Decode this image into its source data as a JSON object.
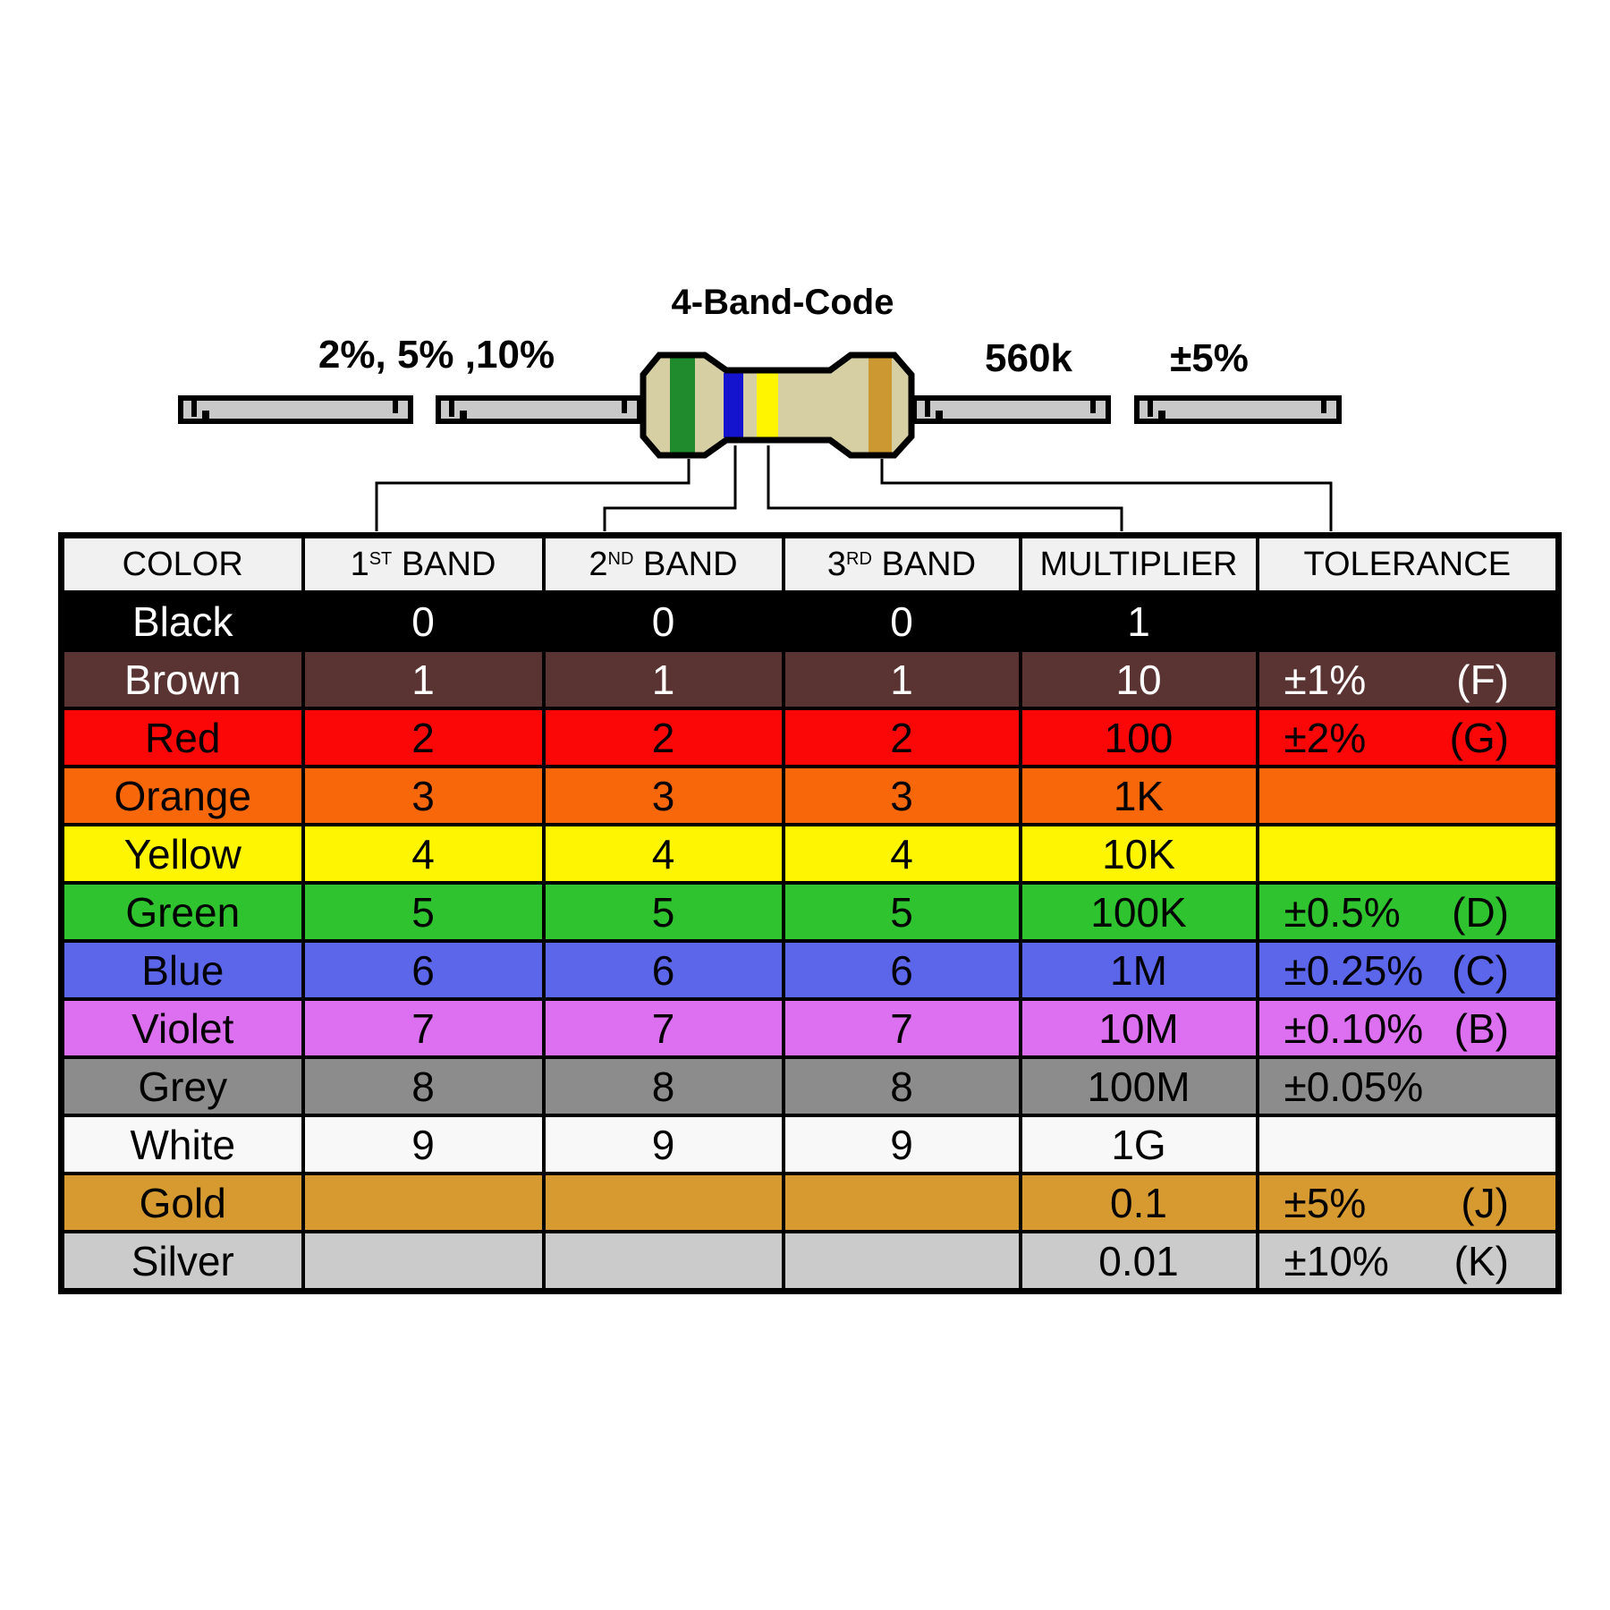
{
  "figure": {
    "title": "4-Band-Code",
    "left_label": "2%, 5% ,10%",
    "value_label": "560k",
    "tolerance_label": "±5%",
    "lead_color": "#c9c9c9",
    "resistor": {
      "body_color": "#d7cfa4",
      "bands": [
        {
          "name": "green-1st-band",
          "color": "#1f8b2c"
        },
        {
          "name": "blue-2nd-band",
          "color": "#1414cf"
        },
        {
          "name": "yellow-multiplier-band",
          "color": "#fff500"
        },
        {
          "name": "gold-tolerance-band",
          "color": "#cc9832"
        }
      ]
    }
  },
  "table": {
    "headers": [
      {
        "key": "color",
        "label": "COLOR",
        "sup": "",
        "suffix": ""
      },
      {
        "key": "band1",
        "label": "1",
        "sup": "ST",
        "suffix": "BAND"
      },
      {
        "key": "band2",
        "label": "2",
        "sup": "ND",
        "suffix": "BAND"
      },
      {
        "key": "band3",
        "label": "3",
        "sup": "RD",
        "suffix": "BAND"
      },
      {
        "key": "multiplier",
        "label": "MULTIPLIER",
        "sup": "",
        "suffix": ""
      },
      {
        "key": "tolerance",
        "label": "TOLERANCE",
        "sup": "",
        "suffix": ""
      }
    ],
    "rows": [
      {
        "color": "Black",
        "bg": "#000000",
        "fg": "#ffffff",
        "band1": "0",
        "band2": "0",
        "band3": "0",
        "multiplier": "1",
        "tolerance": "",
        "letter": ""
      },
      {
        "color": "Brown",
        "bg": "#5a3433",
        "fg": "#ffffff",
        "band1": "1",
        "band2": "1",
        "band3": "1",
        "multiplier": "10",
        "tolerance": "±1%",
        "letter": "(F)"
      },
      {
        "color": "Red",
        "bg": "#fb0707",
        "fg": "#000000",
        "band1": "2",
        "band2": "2",
        "band3": "2",
        "multiplier": "100",
        "tolerance": "±2%",
        "letter": "(G)"
      },
      {
        "color": "Orange",
        "bg": "#f8680b",
        "fg": "#000000",
        "band1": "3",
        "band2": "3",
        "band3": "3",
        "multiplier": "1K",
        "tolerance": "",
        "letter": ""
      },
      {
        "color": "Yellow",
        "bg": "#fdf501",
        "fg": "#000000",
        "band1": "4",
        "band2": "4",
        "band3": "4",
        "multiplier": "10K",
        "tolerance": "",
        "letter": ""
      },
      {
        "color": "Green",
        "bg": "#2ec32f",
        "fg": "#000000",
        "band1": "5",
        "band2": "5",
        "band3": "5",
        "multiplier": "100K",
        "tolerance": "±0.5%",
        "letter": "(D)"
      },
      {
        "color": "Blue",
        "bg": "#5c66ea",
        "fg": "#000000",
        "band1": "6",
        "band2": "6",
        "band3": "6",
        "multiplier": "1M",
        "tolerance": "±0.25%",
        "letter": "(C)"
      },
      {
        "color": "Violet",
        "bg": "#dd70f1",
        "fg": "#000000",
        "band1": "7",
        "band2": "7",
        "band3": "7",
        "multiplier": "10M",
        "tolerance": "±0.10%",
        "letter": "(B)"
      },
      {
        "color": "Grey",
        "bg": "#8c8c8c",
        "fg": "#000000",
        "band1": "8",
        "band2": "8",
        "band3": "8",
        "multiplier": "100M",
        "tolerance": "±0.05%",
        "letter": ""
      },
      {
        "color": "White",
        "bg": "#f8f8f8",
        "fg": "#000000",
        "band1": "9",
        "band2": "9",
        "band3": "9",
        "multiplier": "1G",
        "tolerance": "",
        "letter": ""
      },
      {
        "color": "Gold",
        "bg": "#d69a30",
        "fg": "#000000",
        "band1": "",
        "band2": "",
        "band3": "",
        "multiplier": "0.1",
        "tolerance": "±5%",
        "letter": "(J)"
      },
      {
        "color": "Silver",
        "bg": "#cbcbcb",
        "fg": "#000000",
        "band1": "",
        "band2": "",
        "band3": "",
        "multiplier": "0.01",
        "tolerance": "±10%",
        "letter": "(K)"
      }
    ]
  }
}
